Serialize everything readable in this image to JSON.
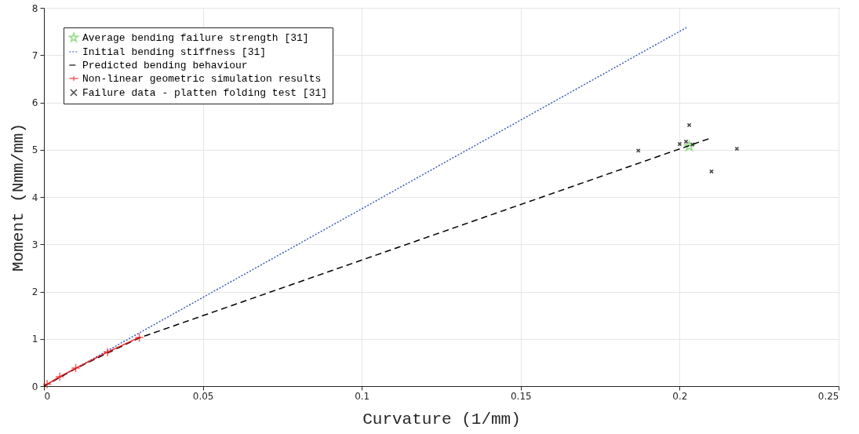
{
  "chart_data": {
    "type": "line",
    "xlabel": "Curvature (1/mm)",
    "ylabel": "Moment (Nmm/mm)",
    "xlim": [
      0,
      0.25
    ],
    "xticks": [
      0,
      0.05,
      0.1,
      0.15,
      0.2,
      0.25
    ],
    "ylim": [
      0,
      8
    ],
    "yticks": [
      0,
      1,
      2,
      3,
      4,
      5,
      6,
      7,
      8
    ],
    "grid": true,
    "legend": "top left",
    "series": [
      {
        "name": "Average bending failure strength [31]",
        "type": "scatter",
        "marker": "star",
        "color": "#6dd05a",
        "x": [
          0.203
        ],
        "values": [
          5.07
        ]
      },
      {
        "name": "Initial bending stiffness [31]",
        "line_style": "dotted",
        "marker": "none",
        "color": "#3a5bb8",
        "x": [
          0,
          0.2026
        ],
        "values": [
          0,
          7.6
        ]
      },
      {
        "name": "Predicted bending behaviour",
        "line_style": "dashed",
        "marker": "none",
        "color": "#000000",
        "x": [
          0,
          0.01,
          0.02,
          0.03,
          0.2095
        ],
        "values": [
          0,
          0.37,
          0.7,
          1.02,
          5.24
        ]
      },
      {
        "name": "Non-linear geometric simulation results",
        "line_style": "solid",
        "marker": "cross",
        "color": "#ee1c1c",
        "x": [
          0.001,
          0.005,
          0.01,
          0.02,
          0.03
        ],
        "values": [
          0.04,
          0.2,
          0.38,
          0.72,
          1.03
        ]
      },
      {
        "name": "Failure data - platten folding test [31]",
        "type": "scatter",
        "marker": "cross",
        "color": "#000000",
        "x": [
          0.187,
          0.203,
          0.2,
          0.202,
          0.204,
          0.218,
          0.21
        ],
        "values": [
          4.98,
          5.52,
          5.12,
          5.17,
          5.11,
          5.02,
          4.54
        ]
      }
    ]
  }
}
